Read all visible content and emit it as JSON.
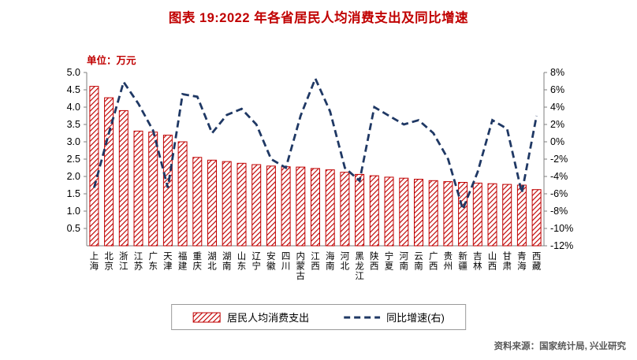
{
  "title": "图表 19:2022 年各省居民人均消费支出及同比增速",
  "unit_label": "单位：万元",
  "source": "资料来源：国家统计局, 兴业研究",
  "legend": {
    "bars": "居民人均消费支出",
    "line": "同比增速(右)"
  },
  "colors": {
    "title": "#C00000",
    "bar": "#C00000",
    "line": "#1F3864",
    "axis": "#7f7f7f",
    "source": "#595959"
  },
  "chart_data": {
    "type": "bar",
    "overlay": "line",
    "title": "图表 19:2022 年各省居民人均消费支出及同比增速",
    "categories": [
      "上海",
      "北京",
      "浙江",
      "江苏",
      "广东",
      "天津",
      "福建",
      "重庆",
      "湖北",
      "湖南",
      "山东",
      "辽宁",
      "安徽",
      "四川",
      "内蒙古",
      "江西",
      "海南",
      "河北",
      "黑龙江",
      "陕西",
      "宁夏",
      "河南",
      "云南",
      "广西",
      "贵州",
      "新疆",
      "吉林",
      "山西",
      "甘肃",
      "青海",
      "西藏"
    ],
    "series": [
      {
        "name": "居民人均消费支出",
        "type": "bar",
        "axis": "left",
        "unit": "万元",
        "values": [
          4.6,
          4.27,
          3.9,
          3.31,
          3.28,
          3.19,
          3.0,
          2.55,
          2.47,
          2.43,
          2.38,
          2.34,
          2.3,
          2.28,
          2.27,
          2.23,
          2.19,
          2.12,
          2.06,
          2.02,
          1.98,
          1.95,
          1.92,
          1.88,
          1.85,
          1.83,
          1.81,
          1.79,
          1.77,
          1.75,
          1.62
        ]
      },
      {
        "name": "同比增速(右)",
        "type": "line",
        "axis": "right",
        "unit": "%",
        "values": [
          -5.3,
          1.0,
          6.9,
          4.4,
          1.3,
          -5.3,
          5.5,
          5.2,
          1.0,
          3.1,
          3.8,
          2.0,
          -2.0,
          -3.0,
          3.0,
          7.3,
          3.5,
          -3.0,
          -4.5,
          4.0,
          3.0,
          2.0,
          2.5,
          1.0,
          -2.0,
          -7.8,
          -3.5,
          2.5,
          1.5,
          -5.9,
          3.0
        ]
      }
    ],
    "left_axis": {
      "label": "单位：万元",
      "min": 0,
      "max": 5,
      "tick_values": [
        5,
        4.5,
        4,
        3.5,
        3,
        2.5,
        2,
        1.5,
        1,
        0.5
      ],
      "tick_labels": [
        "5.0",
        "4.5",
        "4.0",
        "3.5",
        "3.0",
        "2.5",
        "2.0",
        "1.5",
        "1.0",
        "0.5"
      ]
    },
    "right_axis": {
      "min": -12,
      "max": 8,
      "tick_values": [
        8,
        6,
        4,
        2,
        0,
        -2,
        -4,
        -6,
        -8,
        -10,
        -12
      ],
      "tick_labels": [
        "8%",
        "6%",
        "4%",
        "2%",
        "0%",
        "-2%",
        "-4%",
        "-6%",
        "-8%",
        "-10%",
        "-12%"
      ]
    },
    "legend_position": "bottom",
    "grid": false
  }
}
